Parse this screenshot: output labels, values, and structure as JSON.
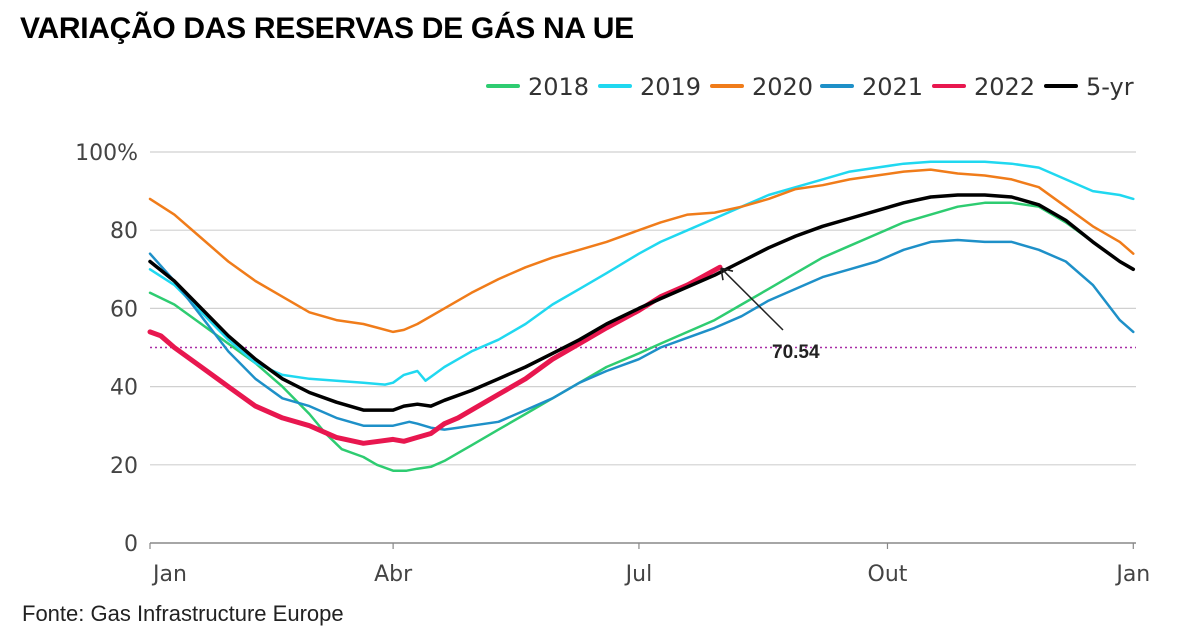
{
  "header": {
    "title": "VARIAÇÃO DAS RESERVAS DE GÁS NA UE"
  },
  "footer": {
    "source": "Fonte: Gas Infrastructure Europe"
  },
  "chart_data": {
    "type": "line",
    "title": "VARIAÇÃO DAS RESERVAS DE GÁS NA UE",
    "xlabel": "",
    "ylabel": "",
    "x_unit": "day_of_year",
    "xlim": [
      1,
      366
    ],
    "ylim": [
      0,
      100
    ],
    "x_ticks": [
      {
        "label": "Jan",
        "day": 1
      },
      {
        "label": "Abr",
        "day": 91
      },
      {
        "label": "Jul",
        "day": 182
      },
      {
        "label": "Out",
        "day": 274
      },
      {
        "label": "Jan",
        "day": 365
      }
    ],
    "y_ticks": [
      {
        "label": "0",
        "value": 0
      },
      {
        "label": "20",
        "value": 20
      },
      {
        "label": "40",
        "value": 40
      },
      {
        "label": "60",
        "value": 60
      },
      {
        "label": "80",
        "value": 80
      },
      {
        "label": "100%",
        "value": 100
      }
    ],
    "grid": "horizontal",
    "legend_position": "top-right",
    "reference_line": {
      "value": 50,
      "style": "dotted",
      "color": "#aa2aa8"
    },
    "annotation": {
      "text": "70.54",
      "day": 212,
      "value": 70.54
    },
    "series": [
      {
        "name": "2018",
        "color": "#2ecc71",
        "width": 2.5,
        "x": [
          1,
          10,
          20,
          30,
          40,
          50,
          60,
          66,
          72,
          80,
          85,
          91,
          96,
          100,
          105,
          110,
          115,
          120,
          130,
          140,
          150,
          160,
          170,
          182,
          190,
          200,
          210,
          220,
          230,
          240,
          250,
          260,
          270,
          280,
          290,
          300,
          310,
          320,
          330,
          340,
          350,
          360,
          365
        ],
        "y": [
          64,
          61,
          56,
          51,
          46,
          40,
          33,
          28,
          24,
          22,
          20,
          18.5,
          18.5,
          19,
          19.5,
          21,
          23,
          25,
          29,
          33,
          37,
          41,
          45,
          48.5,
          51,
          54,
          57,
          61,
          65,
          69,
          73,
          76,
          79,
          82,
          84,
          86,
          87,
          87,
          86,
          82,
          77,
          72,
          70
        ]
      },
      {
        "name": "2019",
        "color": "#20d8f0",
        "width": 2.5,
        "x": [
          1,
          10,
          20,
          30,
          40,
          50,
          60,
          70,
          80,
          88,
          91,
          95,
          100,
          103,
          106,
          110,
          115,
          120,
          130,
          140,
          150,
          160,
          170,
          182,
          190,
          200,
          210,
          220,
          230,
          240,
          250,
          260,
          270,
          280,
          290,
          300,
          310,
          320,
          330,
          340,
          350,
          360,
          365
        ],
        "y": [
          70,
          66,
          59,
          52,
          46,
          43,
          42,
          41.5,
          41,
          40.5,
          41,
          43,
          44,
          41.5,
          43,
          45,
          47,
          49,
          52,
          56,
          61,
          65,
          69,
          74,
          77,
          80,
          83,
          86,
          89,
          91,
          93,
          95,
          96,
          97,
          97.5,
          97.5,
          97.5,
          97,
          96,
          93,
          90,
          89,
          88
        ]
      },
      {
        "name": "2020",
        "color": "#f07c1a",
        "width": 2.5,
        "x": [
          1,
          10,
          20,
          30,
          40,
          50,
          60,
          70,
          80,
          91,
          95,
          100,
          110,
          120,
          130,
          140,
          150,
          160,
          170,
          182,
          190,
          200,
          210,
          220,
          230,
          240,
          250,
          260,
          270,
          280,
          290,
          300,
          310,
          320,
          330,
          340,
          350,
          360,
          365
        ],
        "y": [
          88,
          84,
          78,
          72,
          67,
          63,
          59,
          57,
          56,
          54,
          54.5,
          56,
          60,
          64,
          67.5,
          70.5,
          73,
          75,
          77,
          80,
          82,
          84,
          84.5,
          86,
          88,
          90.5,
          91.5,
          93,
          94,
          95,
          95.5,
          94.5,
          94,
          93,
          91,
          86,
          81,
          77,
          74
        ]
      },
      {
        "name": "2021",
        "color": "#1e90c8",
        "width": 2.5,
        "x": [
          1,
          10,
          20,
          30,
          40,
          50,
          60,
          70,
          80,
          91,
          97,
          100,
          105,
          110,
          115,
          120,
          130,
          140,
          150,
          160,
          170,
          182,
          190,
          200,
          210,
          220,
          230,
          240,
          250,
          260,
          270,
          280,
          290,
          300,
          310,
          320,
          330,
          340,
          350,
          360,
          365
        ],
        "y": [
          74,
          67,
          58,
          49,
          42,
          37,
          35,
          32,
          30,
          30,
          31,
          30.5,
          29.5,
          29,
          29.5,
          30,
          31,
          34,
          37,
          41,
          44,
          47,
          50,
          52.5,
          55,
          58,
          62,
          65,
          68,
          70,
          72,
          75,
          77,
          77.5,
          77,
          77,
          75,
          72,
          66,
          57,
          54
        ]
      },
      {
        "name": "2022",
        "color": "#e8174f",
        "width": 5,
        "x": [
          1,
          5,
          10,
          20,
          30,
          40,
          50,
          60,
          70,
          80,
          91,
          95,
          100,
          105,
          110,
          115,
          120,
          130,
          140,
          150,
          160,
          170,
          182,
          190,
          200,
          212
        ],
        "y": [
          54,
          53,
          50,
          45,
          40,
          35,
          32,
          30,
          27,
          25.5,
          26.5,
          26,
          27,
          28,
          30.5,
          32,
          34,
          38,
          42,
          47,
          51,
          55,
          59.5,
          63,
          66,
          70.54
        ]
      },
      {
        "name": "5-yr",
        "color": "#000000",
        "width": 3.5,
        "x": [
          1,
          10,
          20,
          30,
          40,
          50,
          60,
          70,
          80,
          91,
          95,
          100,
          105,
          110,
          120,
          130,
          140,
          150,
          160,
          170,
          182,
          190,
          200,
          210,
          220,
          230,
          240,
          250,
          260,
          270,
          280,
          290,
          300,
          310,
          320,
          330,
          340,
          350,
          360,
          365
        ],
        "y": [
          72,
          67,
          60,
          53,
          47,
          42,
          38.5,
          36,
          34,
          34,
          35,
          35.5,
          35,
          36.5,
          39,
          42,
          45,
          48.5,
          52,
          56,
          60,
          62.5,
          65.5,
          68.5,
          72,
          75.5,
          78.5,
          81,
          83,
          85,
          87,
          88.5,
          89,
          89,
          88.5,
          86.5,
          82.5,
          77,
          72,
          70
        ]
      }
    ]
  }
}
